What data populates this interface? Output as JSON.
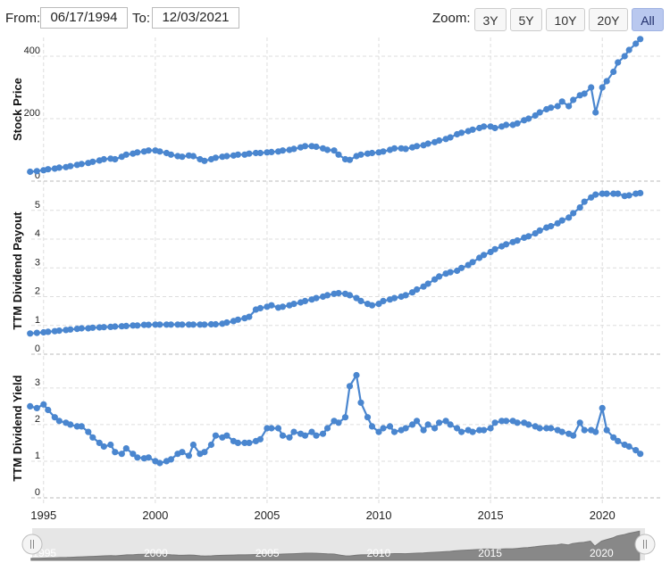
{
  "range": {
    "from_label": "From:",
    "from_value": "06/17/1994",
    "to_label": "To:",
    "to_value": "12/03/2021"
  },
  "zoom": {
    "label": "Zoom:",
    "buttons": [
      "3Y",
      "5Y",
      "10Y",
      "20Y",
      "All"
    ],
    "active": "All"
  },
  "colors": {
    "series": "#4a86cf",
    "grid": "#dddddd",
    "active_button": "#b9c8ef",
    "navigator_fill": "#888888"
  },
  "chart_data": {
    "type": "line",
    "x_axis": {
      "type": "date",
      "range": [
        "1994-06",
        "2021-12"
      ],
      "ticks": [
        "1995",
        "2000",
        "2005",
        "2010",
        "2015",
        "2020"
      ]
    },
    "grid": true,
    "panels": [
      {
        "ylabel": "Stock Price",
        "ylim": [
          0,
          460
        ],
        "yticks": [
          0,
          200,
          400
        ],
        "series": {
          "x": [
            1994.4,
            1994.7,
            1995.0,
            1995.2,
            1995.5,
            1995.7,
            1996.0,
            1996.2,
            1996.5,
            1996.7,
            1997.0,
            1997.2,
            1997.5,
            1997.7,
            1998.0,
            1998.2,
            1998.5,
            1998.7,
            1999.0,
            1999.2,
            1999.5,
            1999.7,
            2000.0,
            2000.2,
            2000.5,
            2000.7,
            2001.0,
            2001.2,
            2001.5,
            2001.7,
            2002.0,
            2002.2,
            2002.5,
            2002.7,
            2003.0,
            2003.2,
            2003.5,
            2003.7,
            2004.0,
            2004.2,
            2004.5,
            2004.7,
            2005.0,
            2005.2,
            2005.5,
            2005.7,
            2006.0,
            2006.2,
            2006.5,
            2006.7,
            2007.0,
            2007.2,
            2007.5,
            2007.7,
            2008.0,
            2008.2,
            2008.5,
            2008.7,
            2009.0,
            2009.2,
            2009.5,
            2009.7,
            2010.0,
            2010.2,
            2010.5,
            2010.7,
            2011.0,
            2011.2,
            2011.5,
            2011.7,
            2012.0,
            2012.2,
            2012.5,
            2012.7,
            2013.0,
            2013.2,
            2013.5,
            2013.7,
            2014.0,
            2014.2,
            2014.5,
            2014.7,
            2015.0,
            2015.2,
            2015.5,
            2015.7,
            2016.0,
            2016.2,
            2016.5,
            2016.7,
            2017.0,
            2017.2,
            2017.5,
            2017.7,
            2018.0,
            2018.2,
            2018.5,
            2018.7,
            2019.0,
            2019.2,
            2019.5,
            2019.7,
            2020.0,
            2020.2,
            2020.5,
            2020.7,
            2021.0,
            2021.2,
            2021.5,
            2021.7
          ],
          "y": [
            30,
            32,
            35,
            38,
            40,
            43,
            45,
            48,
            52,
            55,
            58,
            62,
            66,
            70,
            72,
            70,
            78,
            85,
            88,
            92,
            95,
            98,
            98,
            95,
            90,
            85,
            80,
            78,
            82,
            80,
            70,
            65,
            70,
            75,
            78,
            80,
            82,
            85,
            85,
            88,
            90,
            90,
            92,
            93,
            95,
            98,
            100,
            103,
            108,
            112,
            112,
            110,
            105,
            100,
            98,
            85,
            70,
            68,
            80,
            85,
            88,
            90,
            92,
            95,
            100,
            105,
            105,
            103,
            108,
            112,
            115,
            120,
            125,
            130,
            135,
            140,
            150,
            155,
            160,
            165,
            170,
            175,
            175,
            170,
            175,
            180,
            180,
            185,
            195,
            200,
            210,
            220,
            230,
            235,
            240,
            255,
            240,
            260,
            275,
            280,
            300,
            220,
            300,
            320,
            350,
            380,
            400,
            420,
            440,
            455
          ]
        }
      },
      {
        "ylabel": "TTM Dividend Payout",
        "ylim": [
          0,
          5.8
        ],
        "yticks": [
          0,
          1,
          2,
          3,
          4,
          5
        ],
        "series": {
          "x": [
            1994.4,
            1994.7,
            1995.0,
            1995.2,
            1995.5,
            1995.7,
            1996.0,
            1996.2,
            1996.5,
            1996.7,
            1997.0,
            1997.2,
            1997.5,
            1997.7,
            1998.0,
            1998.2,
            1998.5,
            1998.7,
            1999.0,
            1999.2,
            1999.5,
            1999.7,
            2000.0,
            2000.2,
            2000.5,
            2000.7,
            2001.0,
            2001.2,
            2001.5,
            2001.7,
            2002.0,
            2002.2,
            2002.5,
            2002.7,
            2003.0,
            2003.2,
            2003.5,
            2003.7,
            2004.0,
            2004.2,
            2004.5,
            2004.7,
            2005.0,
            2005.2,
            2005.5,
            2005.7,
            2006.0,
            2006.2,
            2006.5,
            2006.7,
            2007.0,
            2007.2,
            2007.5,
            2007.7,
            2008.0,
            2008.2,
            2008.5,
            2008.7,
            2009.0,
            2009.2,
            2009.5,
            2009.7,
            2010.0,
            2010.2,
            2010.5,
            2010.7,
            2011.0,
            2011.2,
            2011.5,
            2011.7,
            2012.0,
            2012.2,
            2012.5,
            2012.7,
            2013.0,
            2013.2,
            2013.5,
            2013.7,
            2014.0,
            2014.2,
            2014.5,
            2014.7,
            2015.0,
            2015.2,
            2015.5,
            2015.7,
            2016.0,
            2016.2,
            2016.5,
            2016.7,
            2017.0,
            2017.2,
            2017.5,
            2017.7,
            2018.0,
            2018.2,
            2018.5,
            2018.7,
            2019.0,
            2019.2,
            2019.5,
            2019.7,
            2020.0,
            2020.2,
            2020.5,
            2020.7,
            2021.0,
            2021.2,
            2021.5,
            2021.7
          ],
          "y": [
            0.72,
            0.74,
            0.76,
            0.78,
            0.8,
            0.82,
            0.84,
            0.86,
            0.88,
            0.9,
            0.9,
            0.92,
            0.93,
            0.94,
            0.95,
            0.96,
            0.97,
            0.98,
            1.0,
            1.0,
            1.02,
            1.02,
            1.03,
            1.03,
            1.03,
            1.03,
            1.03,
            1.03,
            1.03,
            1.03,
            1.03,
            1.03,
            1.04,
            1.04,
            1.06,
            1.1,
            1.15,
            1.2,
            1.25,
            1.3,
            1.55,
            1.6,
            1.65,
            1.7,
            1.62,
            1.65,
            1.7,
            1.75,
            1.8,
            1.85,
            1.9,
            1.95,
            2.0,
            2.05,
            2.1,
            2.12,
            2.1,
            2.05,
            1.95,
            1.85,
            1.75,
            1.7,
            1.75,
            1.85,
            1.9,
            1.95,
            2.0,
            2.05,
            2.15,
            2.25,
            2.35,
            2.45,
            2.6,
            2.7,
            2.8,
            2.85,
            2.9,
            3.0,
            3.1,
            3.2,
            3.35,
            3.45,
            3.55,
            3.65,
            3.75,
            3.82,
            3.9,
            3.95,
            4.05,
            4.1,
            4.2,
            4.3,
            4.4,
            4.45,
            4.55,
            4.65,
            4.75,
            4.9,
            5.1,
            5.3,
            5.45,
            5.55,
            5.58,
            5.58,
            5.58,
            5.58,
            5.5,
            5.52,
            5.58,
            5.6
          ]
        }
      },
      {
        "ylabel": "TTM Dividend Yield",
        "ylim": [
          0,
          3.8
        ],
        "yticks": [
          0,
          1,
          2,
          3
        ],
        "series": {
          "x": [
            1994.4,
            1994.7,
            1995.0,
            1995.2,
            1995.5,
            1995.7,
            1996.0,
            1996.2,
            1996.5,
            1996.7,
            1997.0,
            1997.2,
            1997.5,
            1997.7,
            1998.0,
            1998.2,
            1998.5,
            1998.7,
            1999.0,
            1999.2,
            1999.5,
            1999.7,
            2000.0,
            2000.2,
            2000.5,
            2000.7,
            2001.0,
            2001.2,
            2001.5,
            2001.7,
            2002.0,
            2002.2,
            2002.5,
            2002.7,
            2003.0,
            2003.2,
            2003.5,
            2003.7,
            2004.0,
            2004.2,
            2004.5,
            2004.7,
            2005.0,
            2005.2,
            2005.5,
            2005.7,
            2006.0,
            2006.2,
            2006.5,
            2006.7,
            2007.0,
            2007.2,
            2007.5,
            2007.7,
            2008.0,
            2008.2,
            2008.5,
            2008.7,
            2009.0,
            2009.2,
            2009.5,
            2009.7,
            2010.0,
            2010.2,
            2010.5,
            2010.7,
            2011.0,
            2011.2,
            2011.5,
            2011.7,
            2012.0,
            2012.2,
            2012.5,
            2012.7,
            2013.0,
            2013.2,
            2013.5,
            2013.7,
            2014.0,
            2014.2,
            2014.5,
            2014.7,
            2015.0,
            2015.2,
            2015.5,
            2015.7,
            2016.0,
            2016.2,
            2016.5,
            2016.7,
            2017.0,
            2017.2,
            2017.5,
            2017.7,
            2018.0,
            2018.2,
            2018.5,
            2018.7,
            2019.0,
            2019.2,
            2019.5,
            2019.7,
            2020.0,
            2020.2,
            2020.5,
            2020.7,
            2021.0,
            2021.2,
            2021.5,
            2021.7
          ],
          "y": [
            2.5,
            2.45,
            2.55,
            2.4,
            2.2,
            2.1,
            2.05,
            2.0,
            1.95,
            1.95,
            1.8,
            1.65,
            1.5,
            1.4,
            1.45,
            1.25,
            1.2,
            1.35,
            1.2,
            1.1,
            1.08,
            1.1,
            1.0,
            0.95,
            1.0,
            1.05,
            1.2,
            1.25,
            1.15,
            1.45,
            1.2,
            1.25,
            1.45,
            1.7,
            1.65,
            1.7,
            1.55,
            1.5,
            1.5,
            1.5,
            1.55,
            1.6,
            1.9,
            1.9,
            1.9,
            1.7,
            1.65,
            1.8,
            1.75,
            1.7,
            1.8,
            1.7,
            1.75,
            1.9,
            2.1,
            2.05,
            2.2,
            3.05,
            3.35,
            2.6,
            2.2,
            1.95,
            1.8,
            1.9,
            1.95,
            1.8,
            1.85,
            1.9,
            2.0,
            2.1,
            1.85,
            2.0,
            1.9,
            2.05,
            2.1,
            2.0,
            1.9,
            1.8,
            1.85,
            1.8,
            1.85,
            1.85,
            1.9,
            2.05,
            2.1,
            2.1,
            2.1,
            2.05,
            2.05,
            2.0,
            1.95,
            1.9,
            1.9,
            1.9,
            1.85,
            1.8,
            1.75,
            1.7,
            2.05,
            1.85,
            1.85,
            1.8,
            2.45,
            1.85,
            1.65,
            1.55,
            1.45,
            1.4,
            1.3,
            1.2
          ]
        }
      }
    ],
    "navigator": {
      "ticks": [
        "1995",
        "2000",
        "2005",
        "2010",
        "2015",
        "2020"
      ]
    }
  }
}
